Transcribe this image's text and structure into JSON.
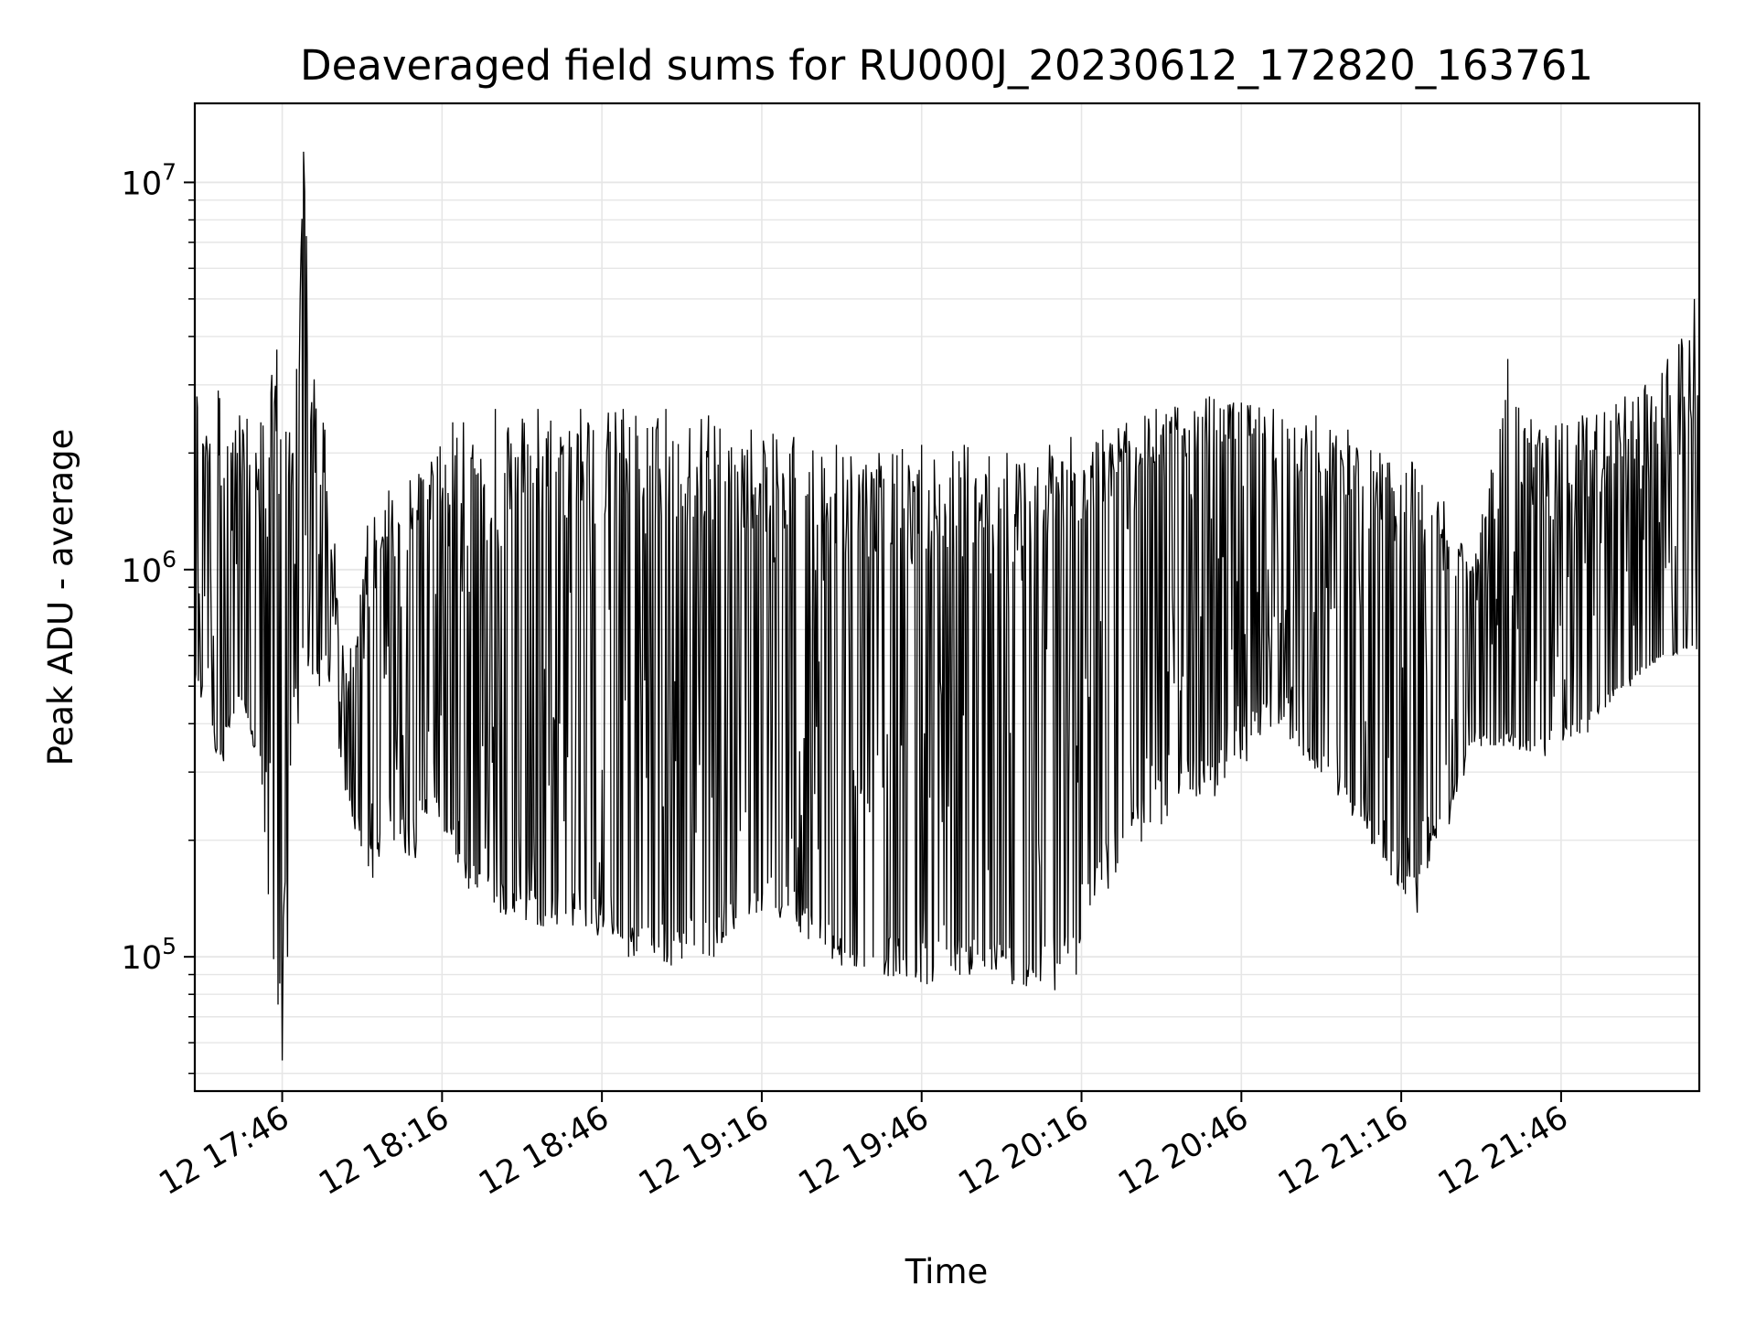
{
  "chart_data": {
    "type": "line",
    "title": "Deaveraged field sums for RU000J_20230612_172820_163761",
    "xlabel": "Time",
    "ylabel": "Peak ADU - average",
    "yscale": "log",
    "ylim": [
      45000,
      16000000
    ],
    "xlim": [
      "2023-06-12 17:29:36",
      "2023-06-12 22:11:56"
    ],
    "grid": true,
    "line_color": "#000000",
    "grid_color": "#e6e6e6",
    "x_ticks": [
      {
        "time": "2023-06-12 17:46",
        "label": "12 17:46"
      },
      {
        "time": "2023-06-12 18:16",
        "label": "12 18:16"
      },
      {
        "time": "2023-06-12 18:46",
        "label": "12 18:46"
      },
      {
        "time": "2023-06-12 19:16",
        "label": "12 19:16"
      },
      {
        "time": "2023-06-12 19:46",
        "label": "12 19:46"
      },
      {
        "time": "2023-06-12 20:16",
        "label": "12 20:16"
      },
      {
        "time": "2023-06-12 20:46",
        "label": "12 20:46"
      },
      {
        "time": "2023-06-12 21:16",
        "label": "12 21:16"
      },
      {
        "time": "2023-06-12 21:46",
        "label": "12 21:46"
      }
    ],
    "y_ticks": [
      {
        "value": 100000,
        "base": "10",
        "exp": "5"
      },
      {
        "value": 1000000,
        "base": "10",
        "exp": "6"
      },
      {
        "value": 10000000,
        "base": "10",
        "exp": "7"
      }
    ],
    "series": [
      {
        "x": [
          "17:30",
          "17:34",
          "17:38",
          "17:42",
          "17:45",
          "17:46",
          "17:48",
          "17:50",
          "17:52",
          "17:54",
          "17:58",
          "18:02",
          "18:06",
          "18:10",
          "18:14",
          "18:18",
          "18:20",
          "18:26",
          "18:34",
          "18:42",
          "18:50",
          "18:58",
          "19:06",
          "19:14",
          "19:22",
          "19:30",
          "19:38",
          "19:46",
          "19:54",
          "20:02",
          "20:10",
          "20:14",
          "20:20",
          "20:30",
          "20:40",
          "20:46",
          "20:52",
          "21:00",
          "21:06",
          "21:12",
          "21:18",
          "21:24",
          "21:30",
          "21:36",
          "21:42",
          "21:50",
          "21:58",
          "22:06",
          "22:11"
        ],
        "high": [
          2800000,
          2900000,
          2500000,
          2400000,
          3700000,
          3300000,
          2000000,
          12000000,
          3100000,
          2300000,
          540000,
          1300000,
          1600000,
          1700000,
          1900000,
          2400000,
          2400000,
          2600000,
          2600000,
          2600000,
          2600000,
          2600000,
          2500000,
          2300000,
          2200000,
          2100000,
          2000000,
          2100000,
          2100000,
          2000000,
          2100000,
          2200000,
          2300000,
          2600000,
          2800000,
          2700000,
          2600000,
          2500000,
          2300000,
          2000000,
          1900000,
          1500000,
          1100000,
          3500000,
          2300000,
          2500000,
          2800000,
          3500000,
          5000000
        ],
        "low": [
          500000,
          320000,
          450000,
          300000,
          54000,
          100000,
          400000,
          600000,
          500000,
          600000,
          260000,
          160000,
          200000,
          180000,
          250000,
          175000,
          150000,
          130000,
          120000,
          120000,
          100000,
          95000,
          100000,
          130000,
          120000,
          95000,
          90000,
          85000,
          90000,
          85000,
          82000,
          90000,
          150000,
          220000,
          260000,
          320000,
          400000,
          300000,
          240000,
          180000,
          130000,
          220000,
          350000,
          350000,
          330000,
          380000,
          500000,
          600000,
          620000
        ],
        "mid": [
          800000,
          700000,
          750000,
          600000,
          400000,
          500000,
          900000,
          1000000,
          900000,
          800000,
          380000,
          400000,
          600000,
          800000,
          1000000,
          700000,
          500000,
          500000,
          600000,
          600000,
          500000,
          500000,
          600000,
          600000,
          550000,
          500000,
          500000,
          450000,
          450000,
          500000,
          500000,
          600000,
          800000,
          1200000,
          1400000,
          1600000,
          1200000,
          800000,
          700000,
          600000,
          550000,
          600000,
          650000,
          600000,
          650000,
          700000,
          700000,
          750000,
          750000
        ]
      }
    ]
  }
}
